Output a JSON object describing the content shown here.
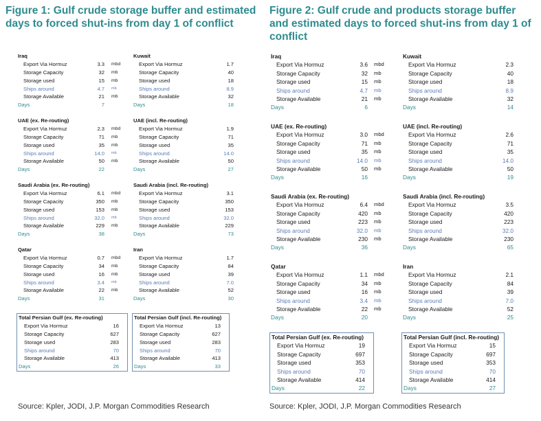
{
  "figures": [
    {
      "id": "fig1",
      "title": "Figure 1: Gulf crude storage buffer and estimated days to forced shut-ins from day 1 of conflict",
      "source": "Source: Kpler, JODI, J.P. Morgan Commodities Research",
      "blocks": [
        {
          "title": "Iraq",
          "units": true,
          "boxed": false,
          "rows": [
            {
              "label": "Export Via Hormuz",
              "value": "3.3",
              "unit": "mbd"
            },
            {
              "label": "Storage Capacity",
              "value": "32",
              "unit": "mb"
            },
            {
              "label": "Storage used",
              "value": "15",
              "unit": "mb"
            },
            {
              "label": "Ships around",
              "value": "4.7",
              "unit": "mb",
              "kind": "ships"
            },
            {
              "label": "Storage Available",
              "value": "21",
              "unit": "mb"
            },
            {
              "label": "Days",
              "value": "7",
              "unit": "",
              "kind": "days"
            }
          ]
        },
        {
          "title": "Kuwait",
          "units": false,
          "boxed": false,
          "rows": [
            {
              "label": "Export Via Hormuz",
              "value": "1.7"
            },
            {
              "label": "Storage Capacity",
              "value": "40"
            },
            {
              "label": "Storage used",
              "value": "18"
            },
            {
              "label": "Ships around",
              "value": "8.9",
              "kind": "ships"
            },
            {
              "label": "Storage Available",
              "value": "32"
            },
            {
              "label": "Days",
              "value": "18",
              "kind": "days"
            }
          ]
        },
        {
          "title": "UAE (ex. Re-routing)",
          "units": true,
          "boxed": false,
          "rows": [
            {
              "label": "Export Via Hormuz",
              "value": "2.3",
              "unit": "mbd"
            },
            {
              "label": "Storage Capacity",
              "value": "71",
              "unit": "mb"
            },
            {
              "label": "Storage used",
              "value": "35",
              "unit": "mb"
            },
            {
              "label": "Ships around",
              "value": "14.0",
              "unit": "mb",
              "kind": "ships"
            },
            {
              "label": "Storage Available",
              "value": "50",
              "unit": "mb"
            },
            {
              "label": "Days",
              "value": "22",
              "unit": "",
              "kind": "days"
            }
          ]
        },
        {
          "title": "UAE (incl. Re-routing)",
          "units": false,
          "boxed": false,
          "rows": [
            {
              "label": "Export Via Hormuz",
              "value": "1.9"
            },
            {
              "label": "Storage Capacity",
              "value": "71"
            },
            {
              "label": "Storage used",
              "value": "35"
            },
            {
              "label": "Ships around",
              "value": "14.0",
              "kind": "ships"
            },
            {
              "label": "Storage Available",
              "value": "50"
            },
            {
              "label": "Days",
              "value": "27",
              "kind": "days"
            }
          ]
        },
        {
          "title": "Saudi Arabia (ex. Re-routing)",
          "units": true,
          "boxed": false,
          "rows": [
            {
              "label": "Export Via Hormuz",
              "value": "6.1",
              "unit": "mbd"
            },
            {
              "label": "Storage Capacity",
              "value": "350",
              "unit": "mb"
            },
            {
              "label": "Storage used",
              "value": "153",
              "unit": "mb"
            },
            {
              "label": "Ships around",
              "value": "32.0",
              "unit": "mb",
              "kind": "ships"
            },
            {
              "label": "Storage Available",
              "value": "229",
              "unit": "mb"
            },
            {
              "label": "Days",
              "value": "38",
              "unit": "",
              "kind": "days"
            }
          ]
        },
        {
          "title": "Saudi Arabia (incl. Re-routing)",
          "units": false,
          "boxed": false,
          "rows": [
            {
              "label": "Export Via Hormuz",
              "value": "3.1"
            },
            {
              "label": "Storage Capacity",
              "value": "350"
            },
            {
              "label": "Storage used",
              "value": "153"
            },
            {
              "label": "Ships around",
              "value": "32.0",
              "kind": "ships"
            },
            {
              "label": "Storage Available",
              "value": "229"
            },
            {
              "label": "Days",
              "value": "73",
              "kind": "days"
            }
          ]
        },
        {
          "title": "Qatar",
          "units": true,
          "boxed": false,
          "rows": [
            {
              "label": "Export Via Hormuz",
              "value": "0.7",
              "unit": "mbd"
            },
            {
              "label": "Storage Capacity",
              "value": "34",
              "unit": "mb"
            },
            {
              "label": "Storage used",
              "value": "16",
              "unit": "mb"
            },
            {
              "label": "Ships around",
              "value": "3.4",
              "unit": "mb",
              "kind": "ships"
            },
            {
              "label": "Storage Available",
              "value": "22",
              "unit": "mb"
            },
            {
              "label": "Days",
              "value": "31",
              "unit": "",
              "kind": "days"
            }
          ]
        },
        {
          "title": "Iran",
          "units": false,
          "boxed": false,
          "rows": [
            {
              "label": "Export Via Hormuz",
              "value": "1.7"
            },
            {
              "label": "Storage Capacity",
              "value": "84"
            },
            {
              "label": "Storage used",
              "value": "39"
            },
            {
              "label": "Ships around",
              "value": "7.0",
              "kind": "ships"
            },
            {
              "label": "Storage Available",
              "value": "52"
            },
            {
              "label": "Days",
              "value": "30",
              "kind": "days"
            }
          ]
        },
        {
          "title": "Total Persian Gulf (ex. Re-routing)",
          "units": false,
          "boxed": true,
          "rows": [
            {
              "label": "Export Via Hormuz",
              "value": "16"
            },
            {
              "label": "Storage Capacity",
              "value": "627"
            },
            {
              "label": "Storage used",
              "value": "283"
            },
            {
              "label": "Ships around",
              "value": "70",
              "kind": "ships"
            },
            {
              "label": "Storage Available",
              "value": "413"
            },
            {
              "label": "Days",
              "value": "26",
              "kind": "days"
            }
          ]
        },
        {
          "title": "Total Persian Gulf (incl. Re-routing)",
          "units": false,
          "boxed": true,
          "rows": [
            {
              "label": "Export Via Hormuz",
              "value": "13"
            },
            {
              "label": "Storage Capacity",
              "value": "627"
            },
            {
              "label": "Storage used",
              "value": "283"
            },
            {
              "label": "Ships around",
              "value": "70",
              "kind": "ships"
            },
            {
              "label": "Storage Available",
              "value": "413"
            },
            {
              "label": "Days",
              "value": "33",
              "kind": "days"
            }
          ]
        }
      ]
    },
    {
      "id": "fig2",
      "title": "Figure 2: Gulf crude and products storage buffer and estimated days to forced shut-ins from day 1 of conflict",
      "source": "Source: Kpler, JODI, J.P. Morgan Commodities Research",
      "blocks": [
        {
          "title": "Iraq",
          "units": true,
          "boxed": false,
          "rows": [
            {
              "label": "Export Via Hormuz",
              "value": "3.6",
              "unit": "mbd"
            },
            {
              "label": "Storage Capacity",
              "value": "32",
              "unit": "mb"
            },
            {
              "label": "Storage used",
              "value": "15",
              "unit": "mb"
            },
            {
              "label": "Ships around",
              "value": "4.7",
              "unit": "mb",
              "kind": "ships"
            },
            {
              "label": "Storage Available",
              "value": "21",
              "unit": "mb"
            },
            {
              "label": "Days",
              "value": "6",
              "unit": "",
              "kind": "days"
            }
          ]
        },
        {
          "title": "Kuwait",
          "units": false,
          "boxed": false,
          "rows": [
            {
              "label": "Export Via Hormuz",
              "value": "2.3"
            },
            {
              "label": "Storage Capacity",
              "value": "40"
            },
            {
              "label": "Storage used",
              "value": "18"
            },
            {
              "label": "Ships around",
              "value": "8.9",
              "kind": "ships"
            },
            {
              "label": "Storage Available",
              "value": "32"
            },
            {
              "label": "Days",
              "value": "14",
              "kind": "days"
            }
          ]
        },
        {
          "title": "UAE (ex. Re-routing)",
          "units": true,
          "boxed": false,
          "rows": [
            {
              "label": "Export Via Hormuz",
              "value": "3.0",
              "unit": "mbd"
            },
            {
              "label": "Storage Capacity",
              "value": "71",
              "unit": "mb"
            },
            {
              "label": "Storage used",
              "value": "35",
              "unit": "mb"
            },
            {
              "label": "Ships around",
              "value": "14.0",
              "unit": "mb",
              "kind": "ships"
            },
            {
              "label": "Storage Available",
              "value": "50",
              "unit": "mb"
            },
            {
              "label": "Days",
              "value": "16",
              "unit": "",
              "kind": "days"
            }
          ]
        },
        {
          "title": "UAE (incl. Re-routing)",
          "units": false,
          "boxed": false,
          "rows": [
            {
              "label": "Export Via Hormuz",
              "value": "2.6"
            },
            {
              "label": "Storage Capacity",
              "value": "71"
            },
            {
              "label": "Storage used",
              "value": "35"
            },
            {
              "label": "Ships around",
              "value": "14.0",
              "kind": "ships"
            },
            {
              "label": "Storage Available",
              "value": "50"
            },
            {
              "label": "Days",
              "value": "19",
              "kind": "days"
            }
          ]
        },
        {
          "title": "Saudi Arabia (ex. Re-routing)",
          "units": true,
          "boxed": false,
          "rows": [
            {
              "label": "Export Via Hormuz",
              "value": "6.4",
              "unit": "mbd"
            },
            {
              "label": "Storage Capacity",
              "value": "420",
              "unit": "mb"
            },
            {
              "label": "Storage used",
              "value": "223",
              "unit": "mb"
            },
            {
              "label": "Ships around",
              "value": "32.0",
              "unit": "mb",
              "kind": "ships"
            },
            {
              "label": "Storage Available",
              "value": "230",
              "unit": "mb"
            },
            {
              "label": "Days",
              "value": "36",
              "unit": "",
              "kind": "days"
            }
          ]
        },
        {
          "title": "Saudi Arabia (incl. Re-routing)",
          "units": false,
          "boxed": false,
          "rows": [
            {
              "label": "Export Via Hormuz",
              "value": "3.5"
            },
            {
              "label": "Storage Capacity",
              "value": "420"
            },
            {
              "label": "Storage used",
              "value": "223"
            },
            {
              "label": "Ships around",
              "value": "32.0",
              "kind": "ships"
            },
            {
              "label": "Storage Available",
              "value": "230"
            },
            {
              "label": "Days",
              "value": "65",
              "kind": "days"
            }
          ]
        },
        {
          "title": "Qatar",
          "units": true,
          "boxed": false,
          "rows": [
            {
              "label": "Export Via Hormuz",
              "value": "1.1",
              "unit": "mbd"
            },
            {
              "label": "Storage Capacity",
              "value": "34",
              "unit": "mb"
            },
            {
              "label": "Storage used",
              "value": "16",
              "unit": "mb"
            },
            {
              "label": "Ships around",
              "value": "3.4",
              "unit": "mb",
              "kind": "ships"
            },
            {
              "label": "Storage Available",
              "value": "22",
              "unit": "mb"
            },
            {
              "label": "Days",
              "value": "20",
              "unit": "",
              "kind": "days"
            }
          ]
        },
        {
          "title": "Iran",
          "units": false,
          "boxed": false,
          "rows": [
            {
              "label": "Export Via Hormuz",
              "value": "2.1"
            },
            {
              "label": "Storage Capacity",
              "value": "84"
            },
            {
              "label": "Storage used",
              "value": "39"
            },
            {
              "label": "Ships around",
              "value": "7.0",
              "kind": "ships"
            },
            {
              "label": "Storage Available",
              "value": "52"
            },
            {
              "label": "Days",
              "value": "25",
              "kind": "days"
            }
          ]
        },
        {
          "title": "Total Persian Gulf (ex. Re-routing)",
          "units": false,
          "boxed": true,
          "rows": [
            {
              "label": "Export Via Hormuz",
              "value": "19"
            },
            {
              "label": "Storage Capacity",
              "value": "697"
            },
            {
              "label": "Storage used",
              "value": "353"
            },
            {
              "label": "Ships around",
              "value": "70",
              "kind": "ships"
            },
            {
              "label": "Storage Available",
              "value": "414"
            },
            {
              "label": "Days",
              "value": "22",
              "kind": "days"
            }
          ]
        },
        {
          "title": "Total Persian Gulf (incl. Re-routing)",
          "units": false,
          "boxed": true,
          "rows": [
            {
              "label": "Export Via Hormuz",
              "value": "15"
            },
            {
              "label": "Storage Capacity",
              "value": "697"
            },
            {
              "label": "Storage used",
              "value": "353"
            },
            {
              "label": "Ships around",
              "value": "70",
              "kind": "ships"
            },
            {
              "label": "Storage Available",
              "value": "414"
            },
            {
              "label": "Days",
              "value": "27",
              "kind": "days"
            }
          ]
        }
      ]
    }
  ]
}
